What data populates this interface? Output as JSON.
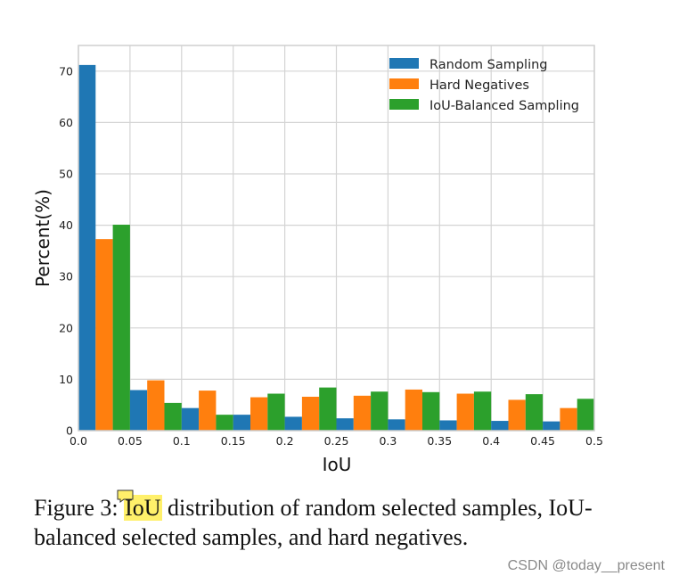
{
  "chart_data": {
    "type": "bar",
    "title": "",
    "xlabel": "IoU",
    "ylabel": "Percent(%)",
    "xlim": [
      0,
      0.5
    ],
    "ylim": [
      0,
      75
    ],
    "grid": true,
    "legend_position": "top-right",
    "x_ticks": [
      "0.0",
      "0.05",
      "0.1",
      "0.15",
      "0.2",
      "0.25",
      "0.3",
      "0.35",
      "0.4",
      "0.45",
      "0.5"
    ],
    "y_ticks": [
      "0",
      "10",
      "20",
      "30",
      "40",
      "50",
      "60",
      "70"
    ],
    "bins": [
      [
        0.0,
        0.05
      ],
      [
        0.05,
        0.1
      ],
      [
        0.1,
        0.15
      ],
      [
        0.15,
        0.2
      ],
      [
        0.2,
        0.25
      ],
      [
        0.25,
        0.3
      ],
      [
        0.3,
        0.35
      ],
      [
        0.35,
        0.4
      ],
      [
        0.4,
        0.45
      ],
      [
        0.45,
        0.5
      ]
    ],
    "series": [
      {
        "name": "Random Sampling",
        "color": "#1f77b4",
        "values": [
          71.2,
          7.9,
          4.4,
          3.1,
          2.7,
          2.4,
          2.2,
          2.0,
          1.9,
          1.8
        ]
      },
      {
        "name": "Hard Negatives",
        "color": "#ff7f0e",
        "values": [
          37.3,
          9.8,
          7.8,
          6.5,
          6.6,
          6.8,
          8.0,
          7.2,
          6.0,
          4.4
        ]
      },
      {
        "name": "IoU-Balanced Sampling",
        "color": "#2ca02c",
        "values": [
          40.1,
          5.4,
          3.1,
          7.2,
          8.4,
          7.6,
          7.5,
          7.6,
          7.1,
          6.2
        ]
      }
    ]
  },
  "caption": {
    "prefix": "Figure 3: ",
    "highlight": "IoU",
    "line1_rest": " distribution of random selected samples, IoU-",
    "line2": "balanced selected samples, and hard negatives."
  },
  "watermark": "CSDN @today__present",
  "colors": {
    "highlight": "#fff06a",
    "grid": "#d4d4d4",
    "axes": "#cfcfcf"
  }
}
